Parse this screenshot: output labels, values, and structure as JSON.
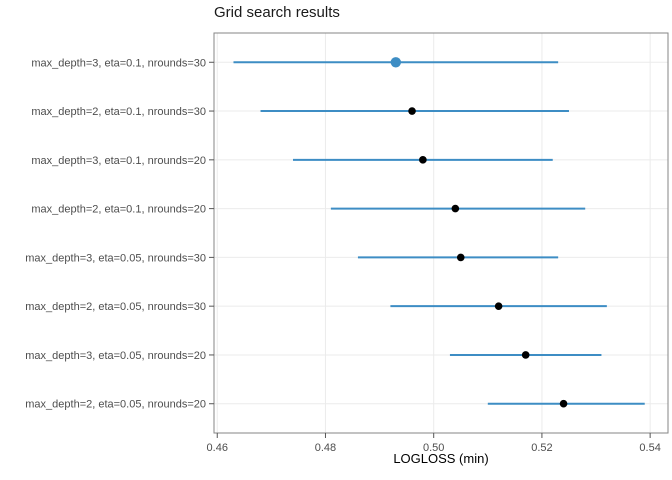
{
  "chart_data": {
    "type": "scatter",
    "style": "pointrange (dot with horizontal error bar)",
    "title": "Grid search results",
    "xlabel": "LOGLOSS (min)",
    "ylabel": "",
    "xlim": [
      0.4594,
      0.5433
    ],
    "x_ticks": [
      0.46,
      0.48,
      0.5,
      0.52,
      0.54
    ],
    "x_tick_labels": [
      "0.46",
      "0.48",
      "0.50",
      "0.52",
      "0.54"
    ],
    "grid": "major vertical at x ticks, horizontal at each category row",
    "legend": "none",
    "rows": [
      {
        "label": "max_depth=3, eta=0.1, nrounds=30",
        "estimate": 0.493,
        "lower": 0.463,
        "upper": 0.523,
        "highlight": true
      },
      {
        "label": "max_depth=2, eta=0.1, nrounds=30",
        "estimate": 0.496,
        "lower": 0.468,
        "upper": 0.525,
        "highlight": false
      },
      {
        "label": "max_depth=3, eta=0.1, nrounds=20",
        "estimate": 0.498,
        "lower": 0.474,
        "upper": 0.522,
        "highlight": false
      },
      {
        "label": "max_depth=2, eta=0.1, nrounds=20",
        "estimate": 0.504,
        "lower": 0.481,
        "upper": 0.528,
        "highlight": false
      },
      {
        "label": "max_depth=3, eta=0.05, nrounds=30",
        "estimate": 0.505,
        "lower": 0.486,
        "upper": 0.523,
        "highlight": false
      },
      {
        "label": "max_depth=2, eta=0.05, nrounds=30",
        "estimate": 0.512,
        "lower": 0.492,
        "upper": 0.532,
        "highlight": false
      },
      {
        "label": "max_depth=3, eta=0.05, nrounds=20",
        "estimate": 0.517,
        "lower": 0.503,
        "upper": 0.531,
        "highlight": false
      },
      {
        "label": "max_depth=2, eta=0.05, nrounds=20",
        "estimate": 0.524,
        "lower": 0.51,
        "upper": 0.539,
        "highlight": false
      }
    ],
    "colors": {
      "errorbar": "#3d8dc4",
      "point_default": "#000000",
      "point_highlight": "#3d8dc4",
      "gridline": "#ebebeb",
      "panel_border": "#858585",
      "tick": "#555555",
      "tick_label": "#4d4d4d"
    }
  }
}
